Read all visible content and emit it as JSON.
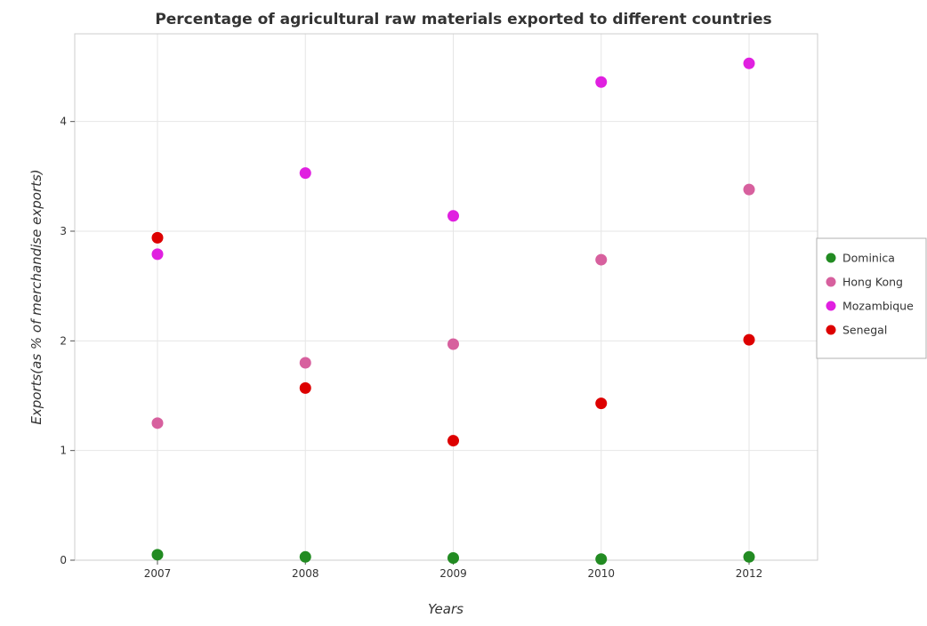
{
  "chart_data": {
    "type": "scatter",
    "title": "Percentage of agricultural raw materials exported to different countries",
    "xlabel": "Years",
    "ylabel": "Exports(as % of merchandise exports)",
    "categories": [
      "2007",
      "2008",
      "2009",
      "2010",
      "2012"
    ],
    "yticks": [
      "0",
      "1",
      "2",
      "3",
      "4"
    ],
    "ylim": [
      0,
      4.8
    ],
    "grid": true,
    "legend_position": "right",
    "series": [
      {
        "name": "Dominica",
        "color": "#228b22",
        "values": [
          0.05,
          0.03,
          0.02,
          0.01,
          0.03
        ]
      },
      {
        "name": "Hong Kong",
        "color": "#d7609e",
        "values": [
          1.25,
          1.8,
          1.97,
          2.74,
          3.38
        ]
      },
      {
        "name": "Mozambique",
        "color": "#e020e0",
        "values": [
          2.79,
          3.53,
          3.14,
          4.36,
          4.53
        ]
      },
      {
        "name": "Senegal",
        "color": "#dd0000",
        "values": [
          2.94,
          1.57,
          1.09,
          1.43,
          2.01
        ]
      }
    ]
  }
}
